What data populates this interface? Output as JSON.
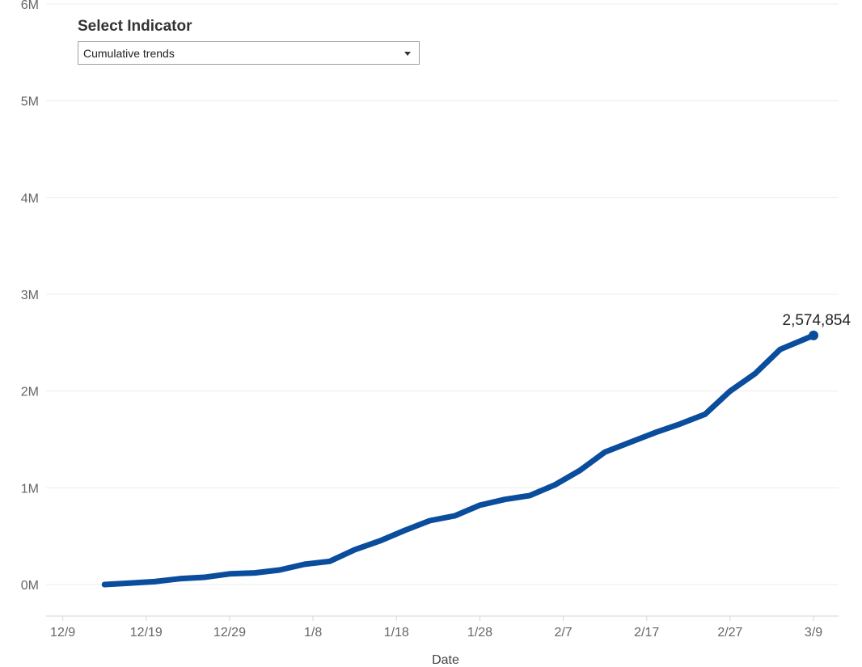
{
  "filter": {
    "title": "Select Indicator",
    "selected": "Cumulative trends",
    "arrow_icon": "dropdown-arrow-icon"
  },
  "chart_data": {
    "type": "line",
    "title": "",
    "xlabel": "Date",
    "ylabel": "",
    "x_ticks": [
      "12/9",
      "12/19",
      "12/29",
      "1/8",
      "1/18",
      "1/28",
      "2/7",
      "2/17",
      "2/27",
      "3/9"
    ],
    "y_ticks": [
      "0M",
      "1M",
      "2M",
      "3M",
      "4M",
      "5M",
      "6M"
    ],
    "ylim": [
      0,
      6000000
    ],
    "xlim": [
      "2020-12-07",
      "2021-03-12"
    ],
    "grid": true,
    "line_color": "#0a4d9c",
    "last_value_label": "2,574,854",
    "series": [
      {
        "x": [
          "2020-12-14",
          "2020-12-17",
          "2020-12-20",
          "2020-12-23",
          "2020-12-26",
          "2020-12-29",
          "2021-01-01",
          "2021-01-04",
          "2021-01-07",
          "2021-01-10",
          "2021-01-13",
          "2021-01-16",
          "2021-01-19",
          "2021-01-22",
          "2021-01-25",
          "2021-01-28",
          "2021-01-31",
          "2021-02-03",
          "2021-02-06",
          "2021-02-09",
          "2021-02-12",
          "2021-02-15",
          "2021-02-18",
          "2021-02-21",
          "2021-02-24",
          "2021-02-27",
          "2021-03-02",
          "2021-03-05",
          "2021-03-09"
        ],
        "y": [
          0,
          15000,
          30000,
          60000,
          75000,
          110000,
          120000,
          150000,
          210000,
          240000,
          360000,
          450000,
          560000,
          660000,
          710000,
          820000,
          880000,
          920000,
          1030000,
          1180000,
          1370000,
          1470000,
          1570000,
          1660000,
          1760000,
          2000000,
          2180000,
          2430000,
          2574854
        ]
      }
    ]
  }
}
